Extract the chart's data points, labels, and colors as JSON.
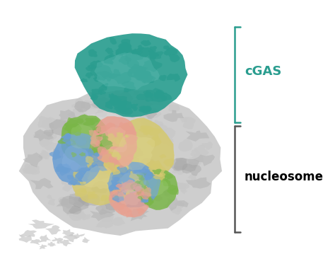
{
  "background_color": "#ffffff",
  "cgas_color": "#2a9d8f",
  "cgas_light": "#7ececa",
  "cgas_label": "cGAS",
  "cgas_label_color": "#2a9d8f",
  "nucleosome_label": "nucleosome",
  "nucleosome_label_color": "#000000",
  "gray_color": "#c8c8c8",
  "gray_dark": "#a0a0a0",
  "yellow_color": "#d4c870",
  "green_color": "#7ab648",
  "blue_color": "#6b9fd4",
  "pink_color": "#e8a090",
  "bracket_color": "#2a9d8f",
  "bracket_nuc_color": "#555555",
  "figsize": [
    4.74,
    3.66
  ],
  "dpi": 100
}
